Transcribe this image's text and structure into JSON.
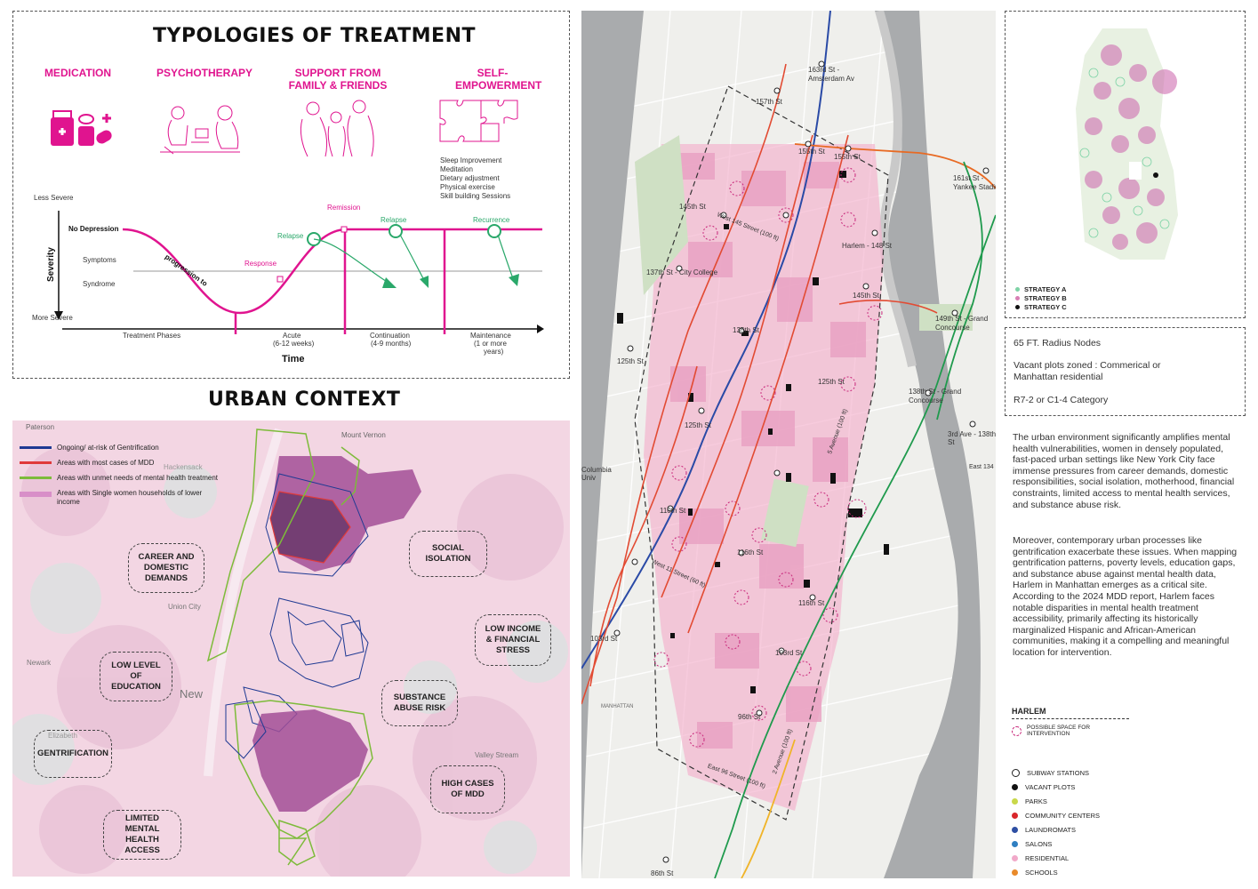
{
  "treatment": {
    "title": "TYPOLOGIES OF TREATMENT",
    "types": [
      "MEDICATION",
      "PSYCHOTHERAPY",
      "SUPPORT FROM FAMILY & FRIENDS",
      "SELF-EMPOWERMENT"
    ],
    "self_list": [
      "Sleep Improvement",
      "Meditation",
      "Dietary adjustment",
      "Physical exercise",
      "Skill building Sessions"
    ],
    "graph": {
      "less_severe": "Less Severe",
      "more_severe": "More Severe",
      "severity": "Severity",
      "no_depression": "No Depression",
      "symptoms": "Symptoms",
      "syndrome": "Syndrome",
      "progression": "progression to",
      "response": "Response",
      "remission": "Remission",
      "relapse1": "Relapse",
      "relapse2": "Relapse",
      "recurrence": "Recurrence",
      "phases": "Treatment Phases",
      "acute": "Acute",
      "acute_dur": "(6-12 weeks)",
      "continuation": "Continuation",
      "continuation_dur": "(4-9 months)",
      "maintenance": "Maintenance",
      "maintenance_dur1": "(1 or more",
      "maintenance_dur2": "years)",
      "time": "Time"
    }
  },
  "urban": {
    "title": "URBAN CONTEXT",
    "legend": [
      {
        "label": "Ongoing/ at-risk of Gentrification",
        "color": "#1f3a93"
      },
      {
        "label": "Areas with most cases of MDD",
        "color": "#e03a3a"
      },
      {
        "label": "Areas with unmet needs of mental health treatment",
        "color": "#7dbb3a"
      },
      {
        "label": "Areas with Single women households of lower income",
        "color": "#d88fc8"
      }
    ],
    "bubbles": [
      "CAREER AND DOMESTIC DEMANDS",
      "SOCIAL ISOLATION",
      "LOW INCOME & FINANCIAL STRESS",
      "LOW LEVEL OF EDUCATION",
      "SUBSTANCE ABUSE RISK",
      "GENTRIFICATION",
      "HIGH CASES OF MDD",
      "LIMITED MENTAL HEALTH ACCESS"
    ],
    "places": [
      "Paterson",
      "Mount Vernon",
      "Union City",
      "Newark",
      "New",
      "Valley Stream",
      "Hackensack",
      "Elizabeth"
    ]
  },
  "map": {
    "streets": [
      "163rd St - Amsterdam Av",
      "157th St",
      "155th St",
      "155th St",
      "161st St - Yankee Stadium",
      "145th St",
      "West 145 Street (100 ft)",
      "Harlem - 148 St",
      "137th St - City College",
      "145th St",
      "149th St - Grand Concourse",
      "135th St",
      "125th St",
      "125th St",
      "125th St",
      "138th St - Grand Concourse",
      "3rd Ave - 138th St",
      "Columbia Univ",
      "110th St",
      "116th St",
      "116th St",
      "West 11 Street (60 ft)",
      "103rd St",
      "103rd St",
      "96th St",
      "East 96 Street (100 ft)",
      "5 Avenue (100 ft)",
      "2 Avenue (100 ft)",
      "86th St",
      "MANHATTAN",
      "East 134"
    ]
  },
  "strategy": {
    "items": [
      {
        "label": "STRATEGY A",
        "color": "#7ed3a6"
      },
      {
        "label": "STRATEGY B",
        "color": "#d87fb5"
      },
      {
        "label": "STRATEGY C",
        "color": "#111111"
      }
    ]
  },
  "nodes": {
    "line1": "65 FT. Radius Nodes",
    "line2": "Vacant plots zoned : Commerical or Manhattan residential",
    "line3": "R7-2 or C1-4 Category"
  },
  "text": {
    "p1": "The urban environment significantly amplifies mental health vulnerabilities, women in densely populated, fast-paced urban settings like New York City face immense pressures from career demands, domestic responsibilities, social isolation, motherhood, financial constraints, limited access to mental health services, and substance abuse risk.",
    "p2": "Moreover, contemporary urban processes like gentrification exacerbate these issues. When mapping gentrification patterns, poverty levels, education gaps, and substance abuse against mental health data, Harlem in Manhattan emerges as a critical site. According to the 2024 MDD report, Harlem faces notable disparities in mental health treatment accessibility, primarily affecting its historically marginalized Hispanic and African-American communities, making it a compelling and meaningful location for intervention."
  },
  "legend": {
    "harlem": "HARLEM",
    "possible": "POSSIBLE SPACE FOR INTERVENTION",
    "items": [
      {
        "label": "SUBWAY STATIONS",
        "color": "#ffffff"
      },
      {
        "label": "VACANT PLOTS",
        "color": "#111111"
      },
      {
        "label": "PARKS",
        "color": "#c9d84a"
      },
      {
        "label": "COMMUNITY CENTERS",
        "color": "#d9262b"
      },
      {
        "label": "LAUNDROMATS",
        "color": "#2e4fa3"
      },
      {
        "label": "SALONS",
        "color": "#2f7fc1"
      },
      {
        "label": "RESIDENTIAL",
        "color": "#f1a9c9"
      },
      {
        "label": "SCHOOLS",
        "color": "#e98a2a"
      }
    ]
  },
  "colors": {
    "magenta": "#e0148f",
    "green": "#2aa86a"
  }
}
